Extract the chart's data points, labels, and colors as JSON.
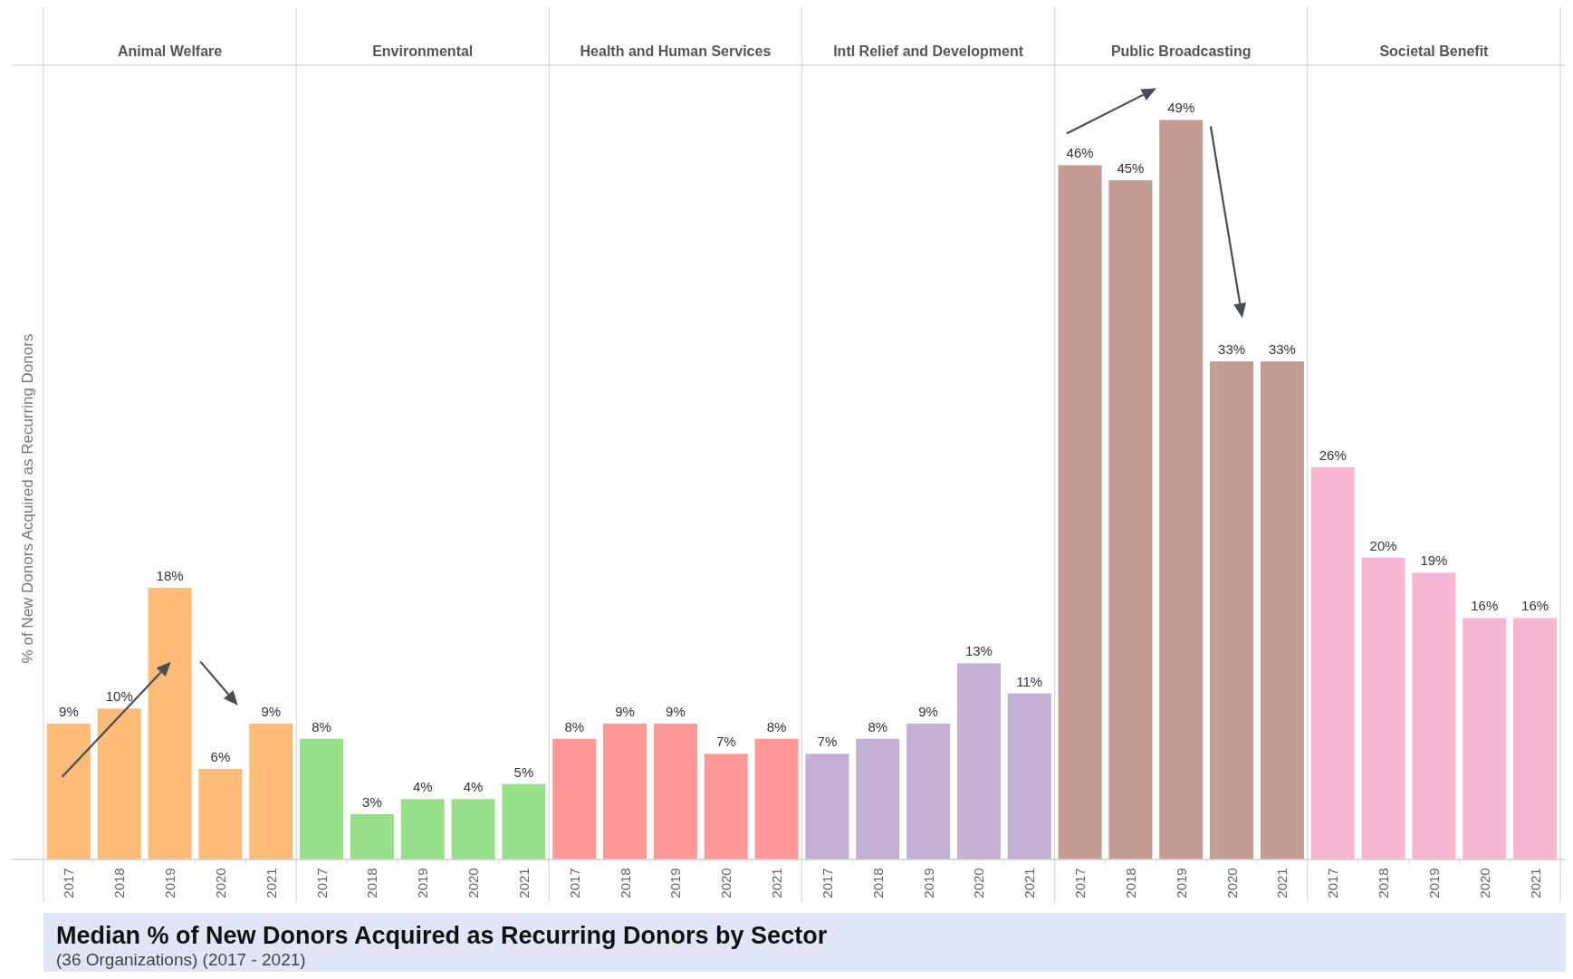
{
  "chart_data": [
    {
      "type": "bar",
      "title": "Animal Welfare",
      "ylabel": "% of New Donors Acquired as Recurring Donors",
      "categories": [
        "2017",
        "2018",
        "2019",
        "2020",
        "2021"
      ],
      "values": [
        9,
        10,
        18,
        6,
        9
      ],
      "value_labels": [
        "9%",
        "10%",
        "18%",
        "6%",
        "9%"
      ],
      "color": "#ffbb78"
    },
    {
      "type": "bar",
      "title": "Environmental",
      "categories": [
        "2017",
        "2018",
        "2019",
        "2020",
        "2021"
      ],
      "values": [
        8,
        3,
        4,
        4,
        5
      ],
      "value_labels": [
        "8%",
        "3%",
        "4%",
        "4%",
        "5%"
      ],
      "color": "#98df8a"
    },
    {
      "type": "bar",
      "title": "Health and Human Services",
      "categories": [
        "2017",
        "2018",
        "2019",
        "2020",
        "2021"
      ],
      "values": [
        8,
        9,
        9,
        7,
        8
      ],
      "value_labels": [
        "8%",
        "9%",
        "9%",
        "7%",
        "8%"
      ],
      "color": "#ff9896"
    },
    {
      "type": "bar",
      "title": "Intl Relief and Development",
      "categories": [
        "2017",
        "2018",
        "2019",
        "2020",
        "2021"
      ],
      "values": [
        7,
        8,
        9,
        13,
        11
      ],
      "value_labels": [
        "7%",
        "8%",
        "9%",
        "13%",
        "11%"
      ],
      "color": "#c5b0d5"
    },
    {
      "type": "bar",
      "title": "Public Broadcasting",
      "categories": [
        "2017",
        "2018",
        "2019",
        "2020",
        "2021"
      ],
      "values": [
        46,
        45,
        49,
        33,
        33
      ],
      "value_labels": [
        "46%",
        "45%",
        "49%",
        "33%",
        "33%"
      ],
      "color": "#c49c94"
    },
    {
      "type": "bar",
      "title": "Societal Benefit",
      "categories": [
        "2017",
        "2018",
        "2019",
        "2020",
        "2021"
      ],
      "values": [
        26,
        20,
        19,
        16,
        16
      ],
      "value_labels": [
        "26%",
        "20%",
        "19%",
        "16%",
        "16%"
      ],
      "color": "#f7b6d2"
    },
    {
      "type": "other",
      "title": "Median % of New Donors Acquired as Recurring Donors by Sector",
      "subtitle": "(36 Organizations) (2017 - 2021)"
    }
  ]
}
